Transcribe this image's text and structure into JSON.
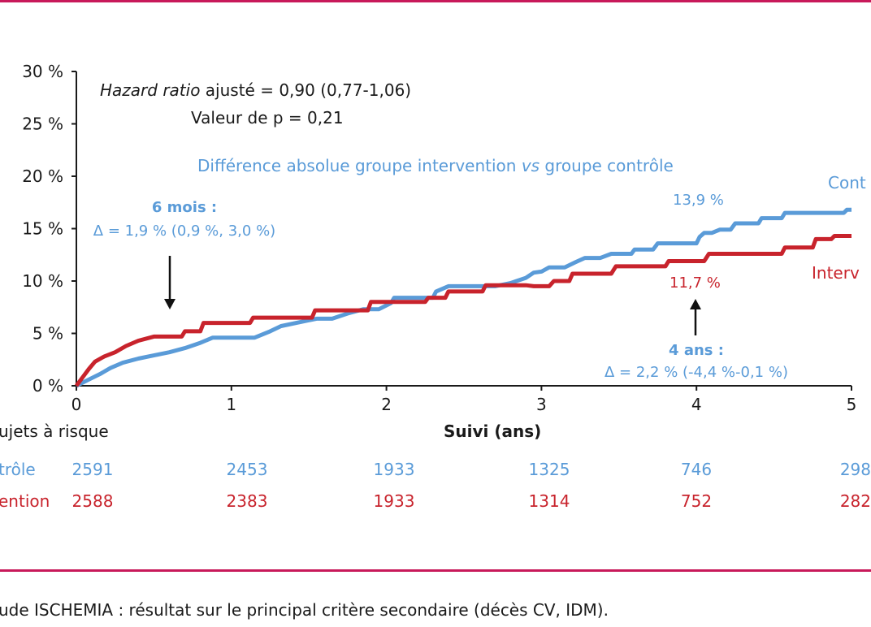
{
  "colors": {
    "accent_rule": "#c8195a",
    "control": "#5a9bd8",
    "intervention": "#c8232c",
    "text": "#1a1a1a"
  },
  "chart_data": {
    "type": "line",
    "xlabel": "Suivi (ans)",
    "xlim": [
      0,
      5
    ],
    "ylim": [
      0,
      30
    ],
    "x_ticks": [
      "0",
      "1",
      "2",
      "3",
      "4",
      "5"
    ],
    "y_ticks": [
      "0 %",
      "5 %",
      "10 %",
      "15 %",
      "20 %",
      "25 %",
      "30 %"
    ],
    "series": [
      {
        "name": "Contrôle",
        "legend_label": "Cont",
        "points": [
          [
            0,
            0
          ],
          [
            0.08,
            0.6
          ],
          [
            0.15,
            1.1
          ],
          [
            0.22,
            1.7
          ],
          [
            0.3,
            2.2
          ],
          [
            0.4,
            2.6
          ],
          [
            0.5,
            2.9
          ],
          [
            0.6,
            3.2
          ],
          [
            0.7,
            3.6
          ],
          [
            0.8,
            4.1
          ],
          [
            0.88,
            4.6
          ],
          [
            1.0,
            4.6
          ],
          [
            1.15,
            4.6
          ],
          [
            1.25,
            5.2
          ],
          [
            1.32,
            5.7
          ],
          [
            1.45,
            6.1
          ],
          [
            1.55,
            6.4
          ],
          [
            1.65,
            6.4
          ],
          [
            1.75,
            6.9
          ],
          [
            1.85,
            7.3
          ],
          [
            1.95,
            7.3
          ],
          [
            2.03,
            7.9
          ],
          [
            2.05,
            8.4
          ],
          [
            2.3,
            8.4
          ],
          [
            2.32,
            9.0
          ],
          [
            2.4,
            9.5
          ],
          [
            2.7,
            9.5
          ],
          [
            2.8,
            9.8
          ],
          [
            2.9,
            10.3
          ],
          [
            2.95,
            10.8
          ],
          [
            3.0,
            10.9
          ],
          [
            3.05,
            11.3
          ],
          [
            3.15,
            11.3
          ],
          [
            3.22,
            11.8
          ],
          [
            3.28,
            12.2
          ],
          [
            3.38,
            12.2
          ],
          [
            3.45,
            12.6
          ],
          [
            3.58,
            12.6
          ],
          [
            3.6,
            13.0
          ],
          [
            3.72,
            13.0
          ],
          [
            3.75,
            13.6
          ],
          [
            4.0,
            13.6
          ],
          [
            4.02,
            14.2
          ],
          [
            4.05,
            14.6
          ],
          [
            4.1,
            14.6
          ],
          [
            4.15,
            14.9
          ],
          [
            4.22,
            14.9
          ],
          [
            4.25,
            15.5
          ],
          [
            4.4,
            15.5
          ],
          [
            4.42,
            16.0
          ],
          [
            4.55,
            16.0
          ],
          [
            4.57,
            16.5
          ],
          [
            4.95,
            16.5
          ],
          [
            4.97,
            16.8
          ],
          [
            5.0,
            16.8
          ]
        ],
        "annotation": "13,9 %"
      },
      {
        "name": "Intervention",
        "legend_label": "Interv",
        "points": [
          [
            0,
            0
          ],
          [
            0.04,
            0.8
          ],
          [
            0.08,
            1.6
          ],
          [
            0.12,
            2.3
          ],
          [
            0.18,
            2.8
          ],
          [
            0.25,
            3.2
          ],
          [
            0.32,
            3.8
          ],
          [
            0.4,
            4.3
          ],
          [
            0.5,
            4.7
          ],
          [
            0.6,
            4.7
          ],
          [
            0.68,
            4.7
          ],
          [
            0.7,
            5.2
          ],
          [
            0.8,
            5.2
          ],
          [
            0.82,
            6.0
          ],
          [
            1.12,
            6.0
          ],
          [
            1.14,
            6.5
          ],
          [
            1.52,
            6.5
          ],
          [
            1.54,
            7.2
          ],
          [
            1.88,
            7.2
          ],
          [
            1.9,
            8.0
          ],
          [
            2.25,
            8.0
          ],
          [
            2.27,
            8.4
          ],
          [
            2.38,
            8.4
          ],
          [
            2.4,
            9.0
          ],
          [
            2.62,
            9.0
          ],
          [
            2.64,
            9.6
          ],
          [
            2.9,
            9.6
          ],
          [
            2.95,
            9.5
          ],
          [
            3.05,
            9.5
          ],
          [
            3.08,
            10.0
          ],
          [
            3.18,
            10.0
          ],
          [
            3.2,
            10.7
          ],
          [
            3.45,
            10.7
          ],
          [
            3.48,
            11.4
          ],
          [
            3.8,
            11.4
          ],
          [
            3.82,
            11.9
          ],
          [
            4.05,
            11.9
          ],
          [
            4.08,
            12.6
          ],
          [
            4.55,
            12.6
          ],
          [
            4.57,
            13.2
          ],
          [
            4.75,
            13.2
          ],
          [
            4.77,
            14.0
          ],
          [
            4.87,
            14.0
          ],
          [
            4.89,
            14.3
          ],
          [
            5.0,
            14.3
          ]
        ],
        "annotation": "11,7 %"
      }
    ],
    "annotations": {
      "hazard_ratio_italic": "Hazard ratio",
      "hazard_ratio_value": " ajusté = 0,90 (0,77-1,06)",
      "p_value": "Valeur de p = 0,21",
      "difference_part1": "Différence absolue groupe intervention ",
      "difference_vs": "vs",
      "difference_part2": " groupe contrôle",
      "six_months_title": "6 mois :",
      "six_months_delta": "Δ = 1,9 % (0,9 %, 3,0 %)",
      "four_years_title": "4 ans :",
      "four_years_delta": "Δ = 2,2 % (-4,4 %-0,1 %)"
    },
    "risk_table": {
      "title": "ujets à risque",
      "rows": [
        {
          "label": "trôle",
          "values": [
            "2591",
            "2453",
            "1933",
            "1325",
            "746",
            "298"
          ]
        },
        {
          "label": "ention",
          "values": [
            "2588",
            "2383",
            "1933",
            "1314",
            "752",
            "282"
          ]
        }
      ]
    }
  },
  "caption": "ude ISCHEMIA : résultat sur le principal critère secondaire (décès CV, IDM)."
}
